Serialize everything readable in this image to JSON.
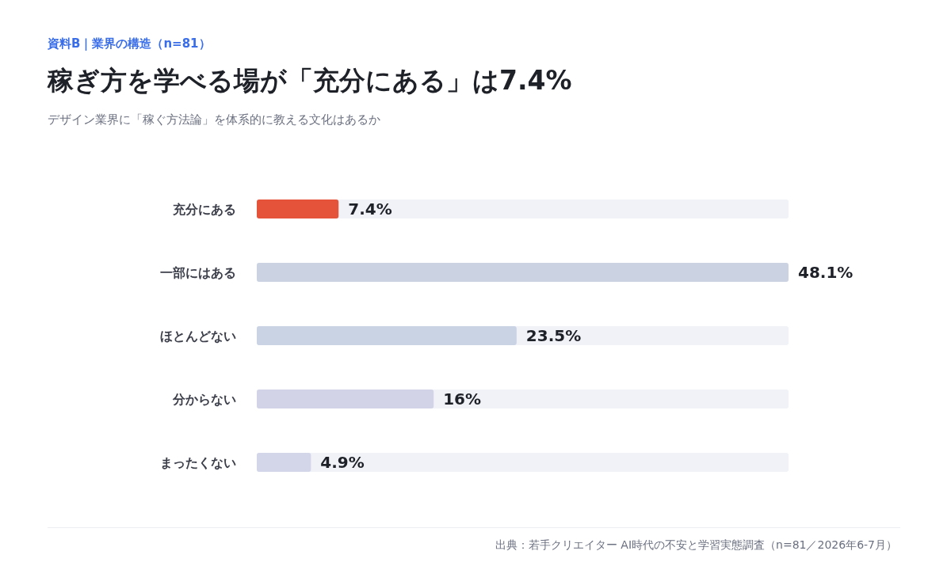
{
  "chart_data": {
    "type": "bar",
    "orientation": "horizontal",
    "title": "稼ぎ方を学べる場が「充分にある」は7.4%",
    "subtitle": "デザイン業界に「稼ぐ方法論」を体系的に教える文化はあるか",
    "annotations": [
      "資料B｜業界の構造（n=81）",
      "出典：若手クリエイター AI時代の不安と学習実態調査（n=81／2026年6-7月）"
    ],
    "categories": [
      "充分にある",
      "一部にはある",
      "ほとんどない",
      "分からない",
      "まったくない"
    ],
    "values": [
      7.4,
      48.1,
      23.5,
      16,
      4.9
    ],
    "colors": [
      "#e4533a",
      "#cbd3e3",
      "#c9d3e4",
      "#d2d3e6",
      "#d3d6e8"
    ],
    "value_labels": [
      "7.4%",
      "48.1%",
      "23.5%",
      "16%",
      "4.9%"
    ],
    "tick_labels": "y"
  }
}
